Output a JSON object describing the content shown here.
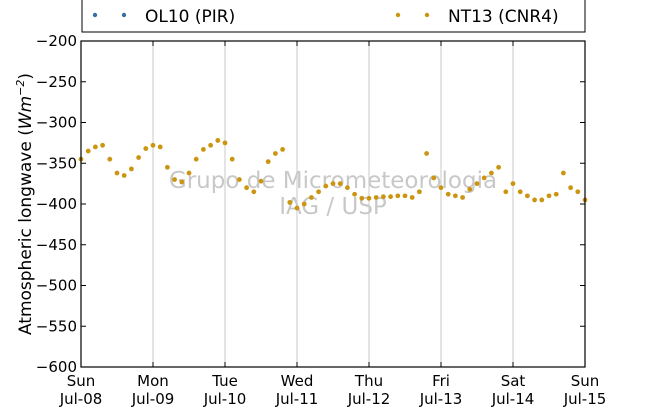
{
  "chart_data": {
    "type": "scatter",
    "ylabel_prefix": "Atmospheric longwave (",
    "ylabel_unit_base": "Wm",
    "ylabel_unit_exp": "−2",
    "ylabel_suffix": ")",
    "ylim": [
      -600,
      -200
    ],
    "yticks": [
      -200,
      -250,
      -300,
      -350,
      -400,
      -450,
      -500,
      -550,
      -600
    ],
    "ytick_labels": [
      "−200",
      "−250",
      "−300",
      "−350",
      "−400",
      "−450",
      "−500",
      "−550",
      "−600"
    ],
    "xlim": [
      0,
      7
    ],
    "xticks_days": [
      0,
      1,
      2,
      3,
      4,
      5,
      6,
      7
    ],
    "xtick_labels": [
      [
        "Sun",
        "Jul-08"
      ],
      [
        "Mon",
        "Jul-09"
      ],
      [
        "Tue",
        "Jul-10"
      ],
      [
        "Wed",
        "Jul-11"
      ],
      [
        "Thu",
        "Jul-12"
      ],
      [
        "Fri",
        "Jul-13"
      ],
      [
        "Sat",
        "Jul-14"
      ],
      [
        "Sun",
        "Jul-15"
      ]
    ],
    "grid": "vertical",
    "legend_placement": "top, above plot",
    "watermark_lines": [
      "Grupo de Micrometeorologia",
      "IAG / USP"
    ],
    "series": [
      {
        "name": "OL10 (PIR)",
        "color": "#3a6fa0",
        "x": [],
        "y": []
      },
      {
        "name": "NT13 (CNR4)",
        "color": "#cc9511",
        "x": [
          0,
          0.1,
          0.2,
          0.3,
          0.4,
          0.5,
          0.6,
          0.7,
          0.8,
          0.9,
          1.0,
          1.1,
          1.2,
          1.3,
          1.4,
          1.5,
          1.6,
          1.7,
          1.8,
          1.9,
          2.0,
          2.1,
          2.2,
          2.3,
          2.4,
          2.5,
          2.6,
          2.7,
          2.8,
          2.9,
          3.0,
          3.1,
          3.2,
          3.3,
          3.4,
          3.5,
          3.6,
          3.7,
          3.8,
          3.9,
          4.0,
          4.1,
          4.2,
          4.3,
          4.4,
          4.5,
          4.6,
          4.7,
          4.8,
          4.9,
          5.0,
          5.1,
          5.2,
          5.3,
          5.4,
          5.5,
          5.6,
          5.7,
          5.8,
          5.9,
          6.0,
          6.1,
          6.2,
          6.3,
          6.4,
          6.5,
          6.6,
          6.7,
          6.8,
          6.9,
          7.0
        ],
        "y": [
          -345,
          -335,
          -330,
          -328,
          -345,
          -362,
          -365,
          -357,
          -343,
          -332,
          -328,
          -330,
          -355,
          -370,
          -373,
          -362,
          -345,
          -333,
          -328,
          -322,
          -325,
          -345,
          -370,
          -380,
          -385,
          -372,
          -348,
          -338,
          -333,
          -398,
          -405,
          -400,
          -392,
          -385,
          -378,
          -375,
          -375,
          -380,
          -388,
          -393,
          -393,
          -392,
          -391,
          -391,
          -390,
          -390,
          -392,
          -385,
          -338,
          -368,
          -380,
          -388,
          -390,
          -392,
          -382,
          -375,
          -368,
          -362,
          -355,
          -385,
          -375,
          -385,
          -390,
          -395,
          -395,
          -390,
          -388,
          -362,
          -380,
          -385,
          -395
        ]
      }
    ]
  }
}
